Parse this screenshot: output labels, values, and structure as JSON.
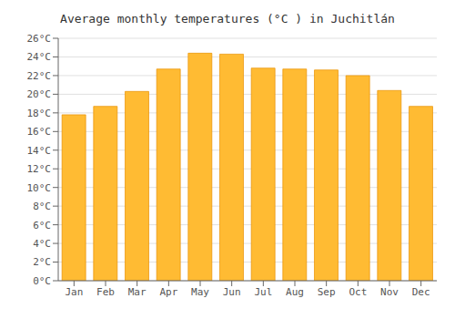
{
  "chart_data": {
    "type": "bar",
    "title": "Average monthly temperatures (°C ) in Juchitlán",
    "categories": [
      "Jan",
      "Feb",
      "Mar",
      "Apr",
      "May",
      "Jun",
      "Jul",
      "Aug",
      "Sep",
      "Oct",
      "Nov",
      "Dec"
    ],
    "values": [
      17.8,
      18.7,
      20.3,
      22.7,
      24.4,
      24.3,
      22.8,
      22.7,
      22.6,
      22.0,
      20.4,
      18.7
    ],
    "color": "#FFBB33",
    "ylim": [
      0,
      26
    ],
    "yticks": [
      {
        "value": 0,
        "label": "0°C"
      },
      {
        "value": 2,
        "label": "2°C"
      },
      {
        "value": 4,
        "label": "4°C"
      },
      {
        "value": 6,
        "label": "6°C"
      },
      {
        "value": 8,
        "label": "8°C"
      },
      {
        "value": 10,
        "label": "10°C"
      },
      {
        "value": 12,
        "label": "12°C"
      },
      {
        "value": 14,
        "label": "14°C"
      },
      {
        "value": 16,
        "label": "16°C"
      },
      {
        "value": 18,
        "label": "18°C"
      },
      {
        "value": 20,
        "label": "20°C"
      },
      {
        "value": 22,
        "label": "22°C"
      },
      {
        "value": 24,
        "label": "24°C"
      },
      {
        "value": 26,
        "label": "26°C"
      }
    ],
    "grid": true
  }
}
